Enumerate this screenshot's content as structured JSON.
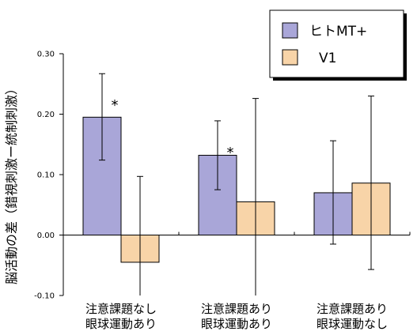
{
  "chart_data": {
    "type": "bar",
    "ylabel": "脳活動の差（錯視刺激ー統制刺激）",
    "ylim": [
      -0.1,
      0.3
    ],
    "yticks": [
      -0.1,
      0.0,
      0.1,
      0.2,
      0.3
    ],
    "ytick_labels": [
      "-0.10",
      "0.00",
      "0.10",
      "0.20",
      "0.30"
    ],
    "categories": [
      [
        "注意課題なし",
        "眼球運動あり"
      ],
      [
        "注意課題あり",
        "眼球運動あり"
      ],
      [
        "注意課題あり",
        "眼球運動なし"
      ]
    ],
    "series": [
      {
        "name": "ヒトMT+",
        "color": "#a9a6d8",
        "values": [
          0.195,
          0.132,
          0.07
        ],
        "err_low": [
          0.124,
          0.075,
          -0.015
        ],
        "err_high": [
          0.267,
          0.189,
          0.156
        ],
        "significant": [
          true,
          true,
          false
        ]
      },
      {
        "name": "V1",
        "color": "#f8d4a8",
        "values": [
          -0.045,
          0.055,
          0.086
        ],
        "err_low": [
          -0.1,
          -0.1,
          -0.057
        ],
        "err_high": [
          0.097,
          0.226,
          0.23
        ],
        "significant": [
          false,
          false,
          false
        ]
      }
    ],
    "significance_marker": "*",
    "legend_position": "top-right",
    "grid": false
  }
}
